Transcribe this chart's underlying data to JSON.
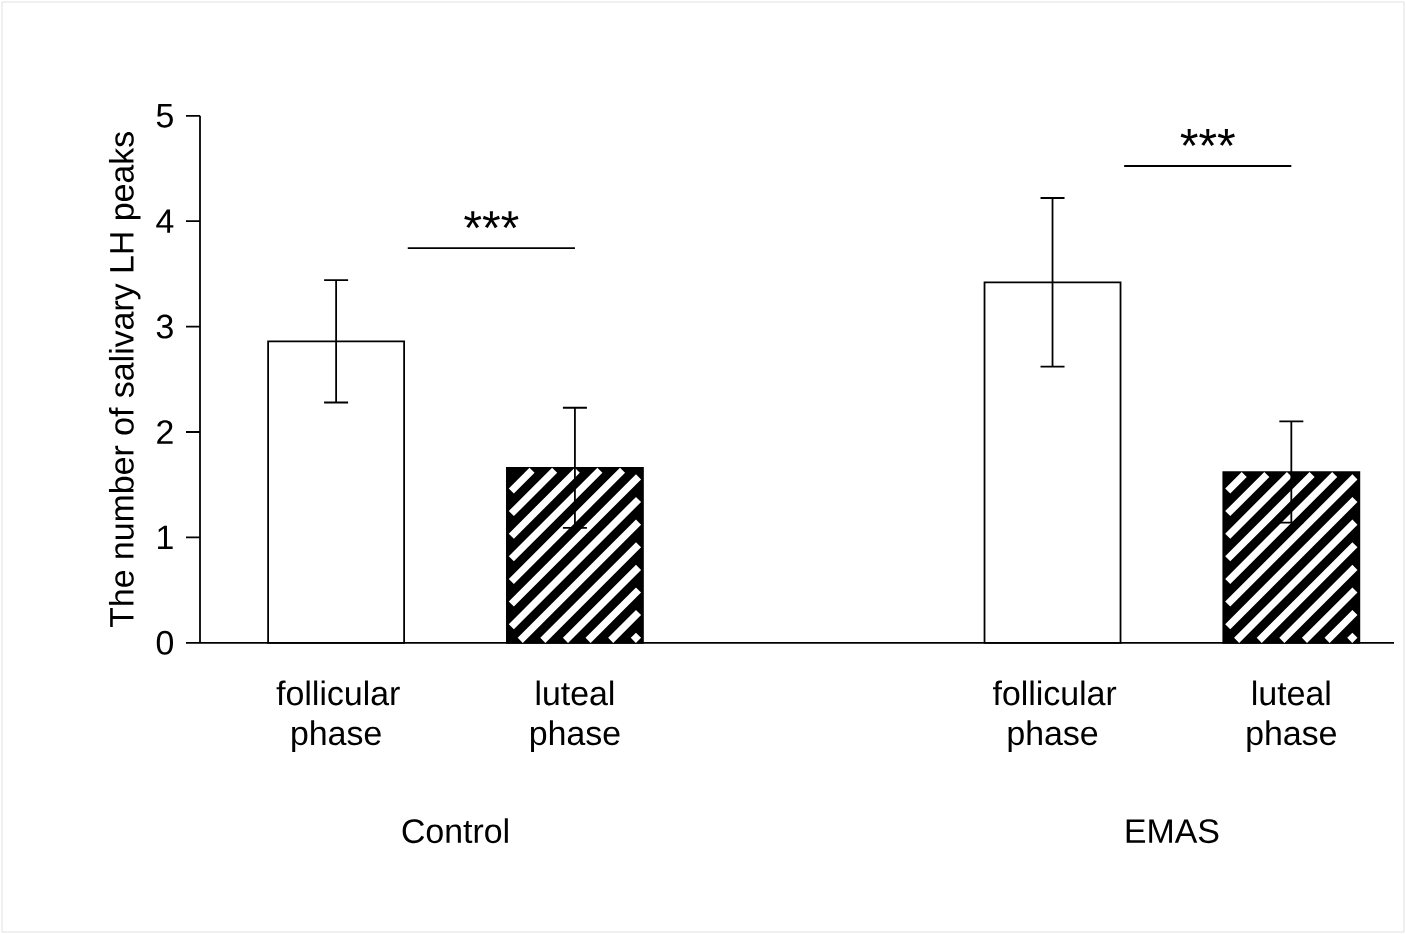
{
  "chart_data": {
    "type": "bar",
    "ylabel": "The number of salivary LH peaks",
    "categories": [
      "follicular phase",
      "luteal phase",
      null,
      "follicular phase",
      "luteal phase"
    ],
    "series": [
      {
        "color": "#ffffff",
        "values": [
          2.86,
          null,
          null,
          3.42,
          null
        ],
        "errors": [
          0.58,
          null,
          null,
          0.8,
          null
        ]
      },
      {
        "color": "#000000",
        "values": [
          null,
          1.66,
          null,
          null,
          1.62
        ],
        "errors": [
          null,
          0.57,
          null,
          null,
          0.48
        ]
      }
    ],
    "ylim": [
      0,
      5
    ],
    "yticks": [
      0,
      1,
      2,
      3,
      4,
      5
    ],
    "grid": false,
    "annotations": [
      "***",
      "***",
      "Control",
      "EMAS"
    ]
  }
}
